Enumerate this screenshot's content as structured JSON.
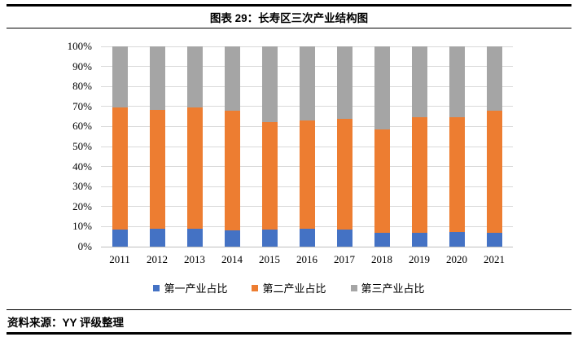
{
  "header": {
    "title": "图表 29：长寿区三次产业结构图"
  },
  "footer": {
    "source": "资料来源：YY 评级整理"
  },
  "chart_data": {
    "type": "bar",
    "stacked": true,
    "percent_stacked": true,
    "title": "图表 29：长寿区三次产业结构图",
    "categories": [
      "2011",
      "2012",
      "2013",
      "2014",
      "2015",
      "2016",
      "2017",
      "2018",
      "2019",
      "2020",
      "2021"
    ],
    "series": [
      {
        "name": "第一产业占比",
        "color": "#4472C4",
        "values": [
          8.5,
          9,
          9,
          8,
          8.5,
          9,
          8.5,
          7,
          7,
          7.5,
          7
        ]
      },
      {
        "name": "第二产业占比",
        "color": "#ED7D31",
        "values": [
          61,
          59.5,
          60.5,
          60,
          53.5,
          54,
          55.5,
          51.5,
          57.5,
          57,
          61
        ]
      },
      {
        "name": "第三产业占比",
        "color": "#A5A5A5",
        "values": [
          30.5,
          31.5,
          30.5,
          32,
          38,
          37,
          36,
          41.5,
          35.5,
          35.5,
          32
        ]
      }
    ],
    "ylim": [
      0,
      100
    ],
    "yticks": [
      "0%",
      "10%",
      "20%",
      "30%",
      "40%",
      "50%",
      "60%",
      "70%",
      "80%",
      "90%",
      "100%"
    ],
    "grid": true,
    "gridline_color": "#D9D9D9",
    "legend_position": "bottom"
  }
}
